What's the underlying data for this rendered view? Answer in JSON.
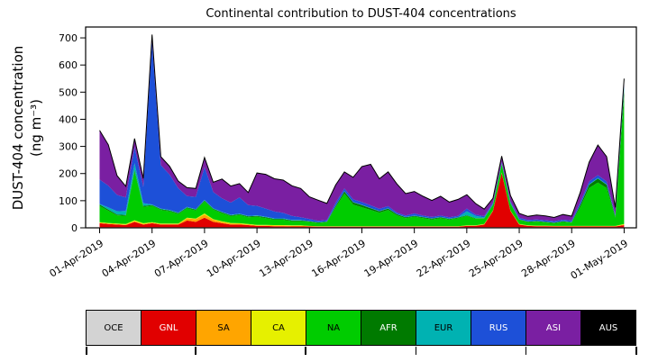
{
  "chart_data": {
    "type": "area",
    "stacked": true,
    "title": "Continental contribution to DUST-404 concentrations",
    "ylabel_line1": "DUST-404 concentration",
    "ylabel_line2": "(ng m⁻³)",
    "xlabel": "",
    "xlim": [
      -0.8,
      30.7
    ],
    "ylim": [
      0,
      740
    ],
    "grid": false,
    "legend_position": "bottom",
    "y_ticks": [
      0,
      100,
      200,
      300,
      400,
      500,
      600,
      700
    ],
    "x_tick_days": [
      0,
      3,
      6,
      9,
      12,
      15,
      18,
      21,
      24,
      27,
      30
    ],
    "x_tick_labels": [
      "01-Apr-2019",
      "04-Apr-2019",
      "07-Apr-2019",
      "10-Apr-2019",
      "13-Apr-2019",
      "16-Apr-2019",
      "19-Apr-2019",
      "22-Apr-2019",
      "25-Apr-2019",
      "28-Apr-2019",
      "01-May-2019"
    ],
    "x_unit": "days since 01-Apr-2019",
    "x": [
      0,
      0.5,
      1,
      1.5,
      2,
      2.5,
      3,
      3.5,
      4,
      4.5,
      5,
      5.5,
      6,
      6.5,
      7,
      7.5,
      8,
      8.5,
      9,
      9.5,
      10,
      10.5,
      11,
      11.5,
      12,
      12.5,
      13,
      13.5,
      14,
      14.5,
      15,
      15.5,
      16,
      16.5,
      17,
      17.5,
      18,
      18.5,
      19,
      19.5,
      20,
      20.5,
      21,
      21.5,
      22,
      22.5,
      23,
      23.5,
      24,
      24.5,
      25,
      25.5,
      26,
      26.5,
      27,
      27.5,
      28,
      28.5,
      29,
      29.5,
      30
    ],
    "series": [
      {
        "name": "OCE",
        "color": "#d3d3d3",
        "text_color": "#000000",
        "values": [
          2,
          2,
          2,
          2,
          2,
          2,
          2,
          2,
          2,
          2,
          2,
          2,
          2,
          2,
          2,
          2,
          2,
          2,
          2,
          2,
          2,
          2,
          2,
          2,
          2,
          2,
          2,
          2,
          2,
          2,
          2,
          2,
          2,
          2,
          2,
          2,
          2,
          2,
          2,
          2,
          2,
          2,
          2,
          2,
          2,
          2,
          2,
          2,
          2,
          2,
          2,
          2,
          2,
          2,
          2,
          2,
          2,
          2,
          2,
          2,
          2
        ]
      },
      {
        "name": "GNL",
        "color": "#e10000",
        "text_color": "#ffffff",
        "values": [
          15,
          12,
          10,
          8,
          20,
          10,
          15,
          10,
          10,
          10,
          25,
          20,
          35,
          20,
          15,
          10,
          10,
          8,
          5,
          5,
          4,
          4,
          3,
          3,
          3,
          2,
          2,
          2,
          2,
          2,
          2,
          2,
          2,
          2,
          2,
          2,
          2,
          2,
          2,
          2,
          2,
          2,
          5,
          5,
          10,
          60,
          200,
          60,
          10,
          5,
          4,
          4,
          3,
          3,
          3,
          3,
          3,
          3,
          3,
          3,
          8
        ]
      },
      {
        "name": "SA",
        "color": "#ffa500",
        "text_color": "#000000",
        "values": [
          2,
          2,
          2,
          2,
          2,
          2,
          2,
          2,
          2,
          2,
          8,
          10,
          12,
          8,
          5,
          4,
          3,
          2,
          2,
          2,
          2,
          2,
          2,
          2,
          1,
          1,
          1,
          1,
          1,
          1,
          1,
          1,
          1,
          1,
          1,
          1,
          1,
          1,
          1,
          1,
          1,
          1,
          1,
          1,
          1,
          1,
          1,
          1,
          1,
          1,
          1,
          1,
          1,
          1,
          1,
          1,
          1,
          1,
          1,
          1,
          2
        ]
      },
      {
        "name": "CA",
        "color": "#e6f000",
        "text_color": "#000000",
        "values": [
          2,
          2,
          2,
          2,
          4,
          3,
          2,
          2,
          2,
          2,
          2,
          2,
          4,
          2,
          2,
          2,
          2,
          2,
          2,
          2,
          2,
          2,
          2,
          2,
          1,
          1,
          1,
          1,
          1,
          1,
          1,
          1,
          1,
          1,
          1,
          1,
          1,
          1,
          1,
          1,
          1,
          1,
          1,
          1,
          1,
          1,
          1,
          1,
          1,
          1,
          1,
          1,
          1,
          1,
          1,
          1,
          1,
          1,
          1,
          1,
          2
        ]
      },
      {
        "name": "NA",
        "color": "#00cc00",
        "text_color": "#000000",
        "values": [
          60,
          45,
          30,
          30,
          180,
          60,
          60,
          50,
          45,
          35,
          35,
          30,
          45,
          35,
          30,
          25,
          30,
          25,
          30,
          25,
          20,
          20,
          15,
          15,
          15,
          12,
          15,
          70,
          120,
          80,
          70,
          60,
          50,
          60,
          40,
          30,
          35,
          30,
          25,
          30,
          25,
          30,
          35,
          25,
          20,
          20,
          30,
          25,
          15,
          12,
          15,
          12,
          10,
          15,
          12,
          70,
          140,
          160,
          140,
          30,
          470
        ]
      },
      {
        "name": "AFR",
        "color": "#007a00",
        "text_color": "#ffffff",
        "values": [
          5,
          4,
          3,
          3,
          5,
          4,
          3,
          3,
          3,
          3,
          3,
          3,
          3,
          3,
          3,
          3,
          3,
          3,
          3,
          3,
          3,
          3,
          3,
          3,
          2,
          2,
          2,
          5,
          8,
          8,
          8,
          6,
          5,
          5,
          4,
          3,
          3,
          3,
          3,
          3,
          2,
          2,
          2,
          2,
          2,
          2,
          2,
          2,
          2,
          2,
          2,
          2,
          2,
          2,
          2,
          8,
          12,
          15,
          12,
          5,
          25
        ]
      },
      {
        "name": "EUR",
        "color": "#00b2b2",
        "text_color": "#000000",
        "values": [
          2,
          8,
          12,
          15,
          25,
          10,
          2,
          2,
          2,
          2,
          2,
          2,
          2,
          2,
          2,
          2,
          2,
          2,
          2,
          2,
          2,
          2,
          2,
          2,
          1,
          1,
          1,
          1,
          1,
          1,
          1,
          1,
          1,
          1,
          1,
          1,
          1,
          1,
          1,
          1,
          1,
          1,
          15,
          8,
          2,
          2,
          2,
          2,
          1,
          1,
          1,
          1,
          1,
          1,
          1,
          1,
          2,
          2,
          2,
          2,
          15
        ]
      },
      {
        "name": "RUS",
        "color": "#1d50d8",
        "text_color": "#ffffff",
        "values": [
          90,
          80,
          60,
          50,
          60,
          60,
          600,
          160,
          130,
          90,
          40,
          45,
          120,
          60,
          50,
          45,
          60,
          40,
          35,
          30,
          25,
          20,
          15,
          10,
          8,
          5,
          5,
          10,
          10,
          10,
          10,
          10,
          8,
          8,
          5,
          5,
          8,
          5,
          5,
          5,
          5,
          5,
          10,
          5,
          5,
          5,
          5,
          5,
          5,
          5,
          5,
          5,
          5,
          5,
          5,
          10,
          10,
          10,
          10,
          5,
          10
        ]
      },
      {
        "name": "ASI",
        "color": "#7a1fa2",
        "text_color": "#ffffff",
        "values": [
          180,
          150,
          70,
          40,
          30,
          30,
          25,
          30,
          30,
          25,
          30,
          30,
          35,
          35,
          70,
          60,
          50,
          45,
          120,
          125,
          120,
          120,
          110,
          105,
          80,
          75,
          60,
          65,
          60,
          80,
          130,
          150,
          110,
          125,
          105,
          80,
          80,
          70,
          60,
          70,
          55,
          60,
          50,
          40,
          25,
          15,
          20,
          20,
          15,
          12,
          15,
          15,
          12,
          18,
          15,
          35,
          70,
          110,
          90,
          25,
          15
        ]
      },
      {
        "name": "AUS",
        "color": "#000000",
        "text_color": "#ffffff",
        "values": [
          1,
          1,
          1,
          1,
          1,
          1,
          1,
          1,
          1,
          1,
          1,
          1,
          1,
          1,
          1,
          1,
          1,
          1,
          1,
          1,
          1,
          1,
          1,
          1,
          1,
          1,
          1,
          1,
          1,
          1,
          1,
          1,
          1,
          1,
          1,
          1,
          1,
          1,
          1,
          1,
          1,
          1,
          1,
          1,
          1,
          1,
          1,
          1,
          1,
          1,
          1,
          1,
          1,
          1,
          1,
          1,
          1,
          1,
          1,
          1,
          1
        ]
      }
    ]
  }
}
